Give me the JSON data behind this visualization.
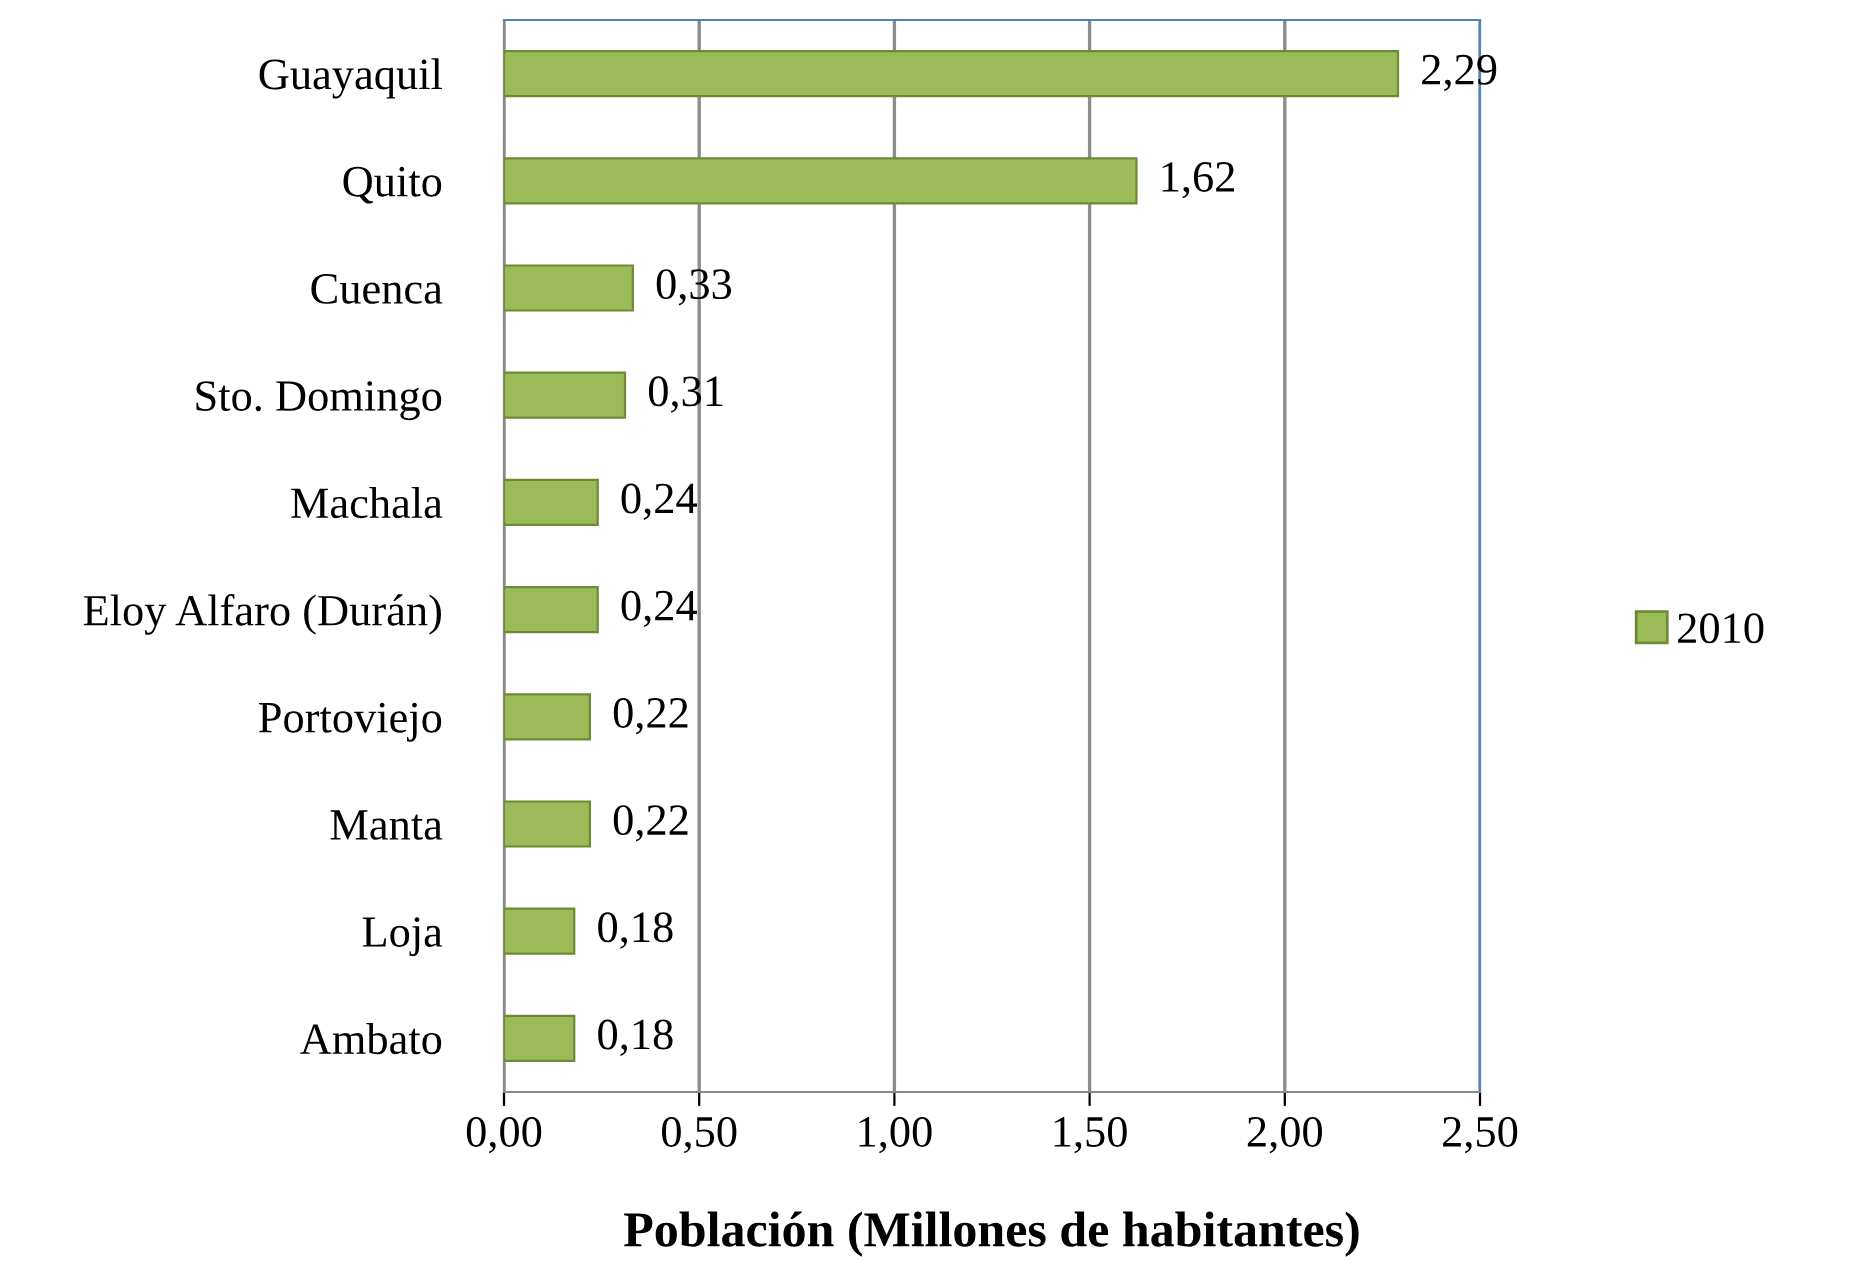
{
  "chart_data": {
    "type": "bar",
    "orientation": "horizontal",
    "xlabel": "Población (Millones de habitantes)",
    "categories": [
      "Guayaquil",
      "Quito",
      "Cuenca",
      "Sto. Domingo",
      "Machala",
      "Eloy Alfaro (Durán)",
      "Portoviejo",
      "Manta",
      "Loja",
      "Ambato"
    ],
    "series": [
      {
        "name": "2010",
        "color": "#9bbb59",
        "values": [
          2.29,
          1.62,
          0.33,
          0.31,
          0.24,
          0.24,
          0.22,
          0.22,
          0.18,
          0.18
        ],
        "value_labels": [
          "2,29",
          "1,62",
          "0,33",
          "0,31",
          "0,24",
          "0,24",
          "0,22",
          "0,22",
          "0,18",
          "0,18"
        ]
      }
    ],
    "xlim": [
      0,
      2.5
    ],
    "xticks": [
      {
        "value": 0,
        "label": "0,00"
      },
      {
        "value": 0.5,
        "label": "0,50"
      },
      {
        "value": 1,
        "label": "1,00"
      },
      {
        "value": 1.5,
        "label": "1,50"
      },
      {
        "value": 2,
        "label": "2,00"
      },
      {
        "value": 2.5,
        "label": "2,50"
      }
    ],
    "grid": "x",
    "legend": "right"
  }
}
